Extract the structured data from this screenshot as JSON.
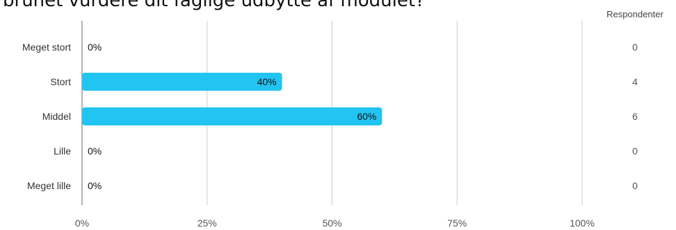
{
  "title": "brunet vurdere dit faglige udbytte af modulet?",
  "chart_data": {
    "type": "bar",
    "orientation": "horizontal",
    "categories": [
      "Meget stort",
      "Stort",
      "Middel",
      "Lille",
      "Meget lille"
    ],
    "values": [
      0,
      40,
      60,
      0,
      0
    ],
    "value_labels": [
      "0%",
      "40%",
      "60%",
      "0%",
      "0%"
    ],
    "respondents_header": "Respondenter",
    "respondents": [
      "0",
      "4",
      "6",
      "0",
      "0"
    ],
    "xlim": [
      0,
      100
    ],
    "x_ticks": [
      0,
      25,
      50,
      75,
      100
    ],
    "x_tick_labels": [
      "0%",
      "25%",
      "50%",
      "75%",
      "100%"
    ],
    "grid": true,
    "bar_color": "#22c4f2",
    "gridline_color": "#cccccc"
  }
}
